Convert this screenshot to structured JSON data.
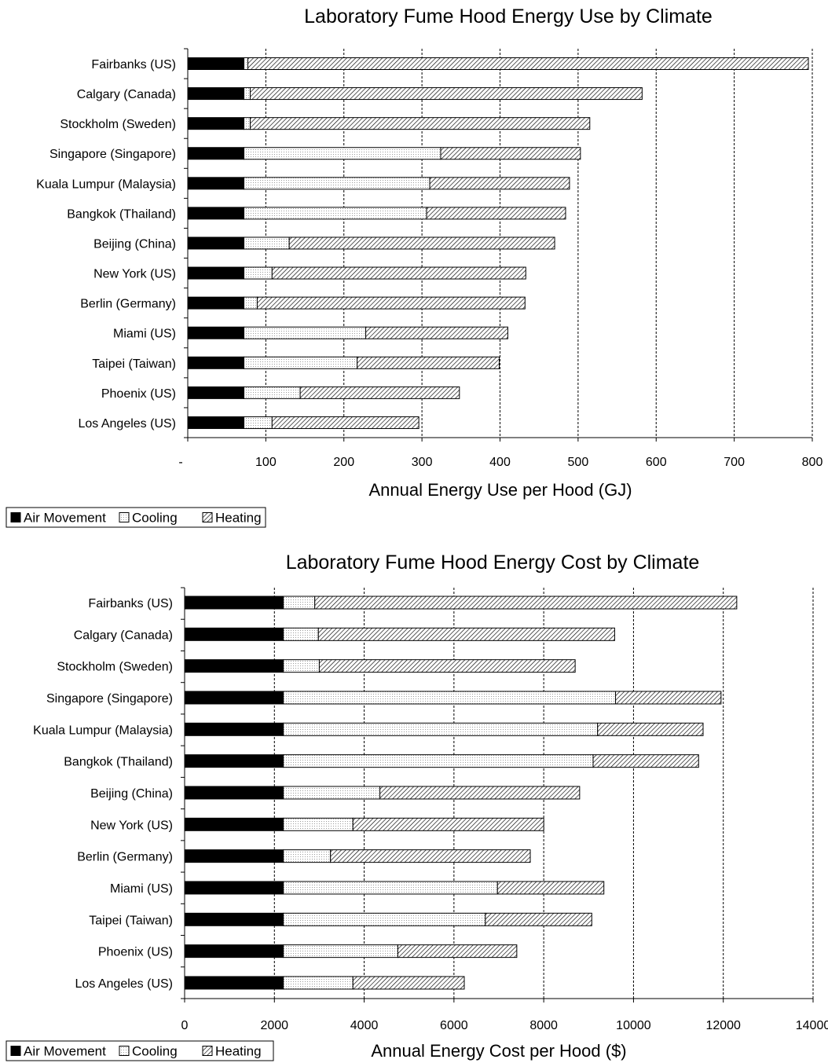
{
  "colors": {
    "air": "#000000",
    "cooling": "#ffffff",
    "heating": "#d8d8d8",
    "stroke": "#000000"
  },
  "legend": {
    "items": [
      "Air Movement",
      "Cooling",
      "Heating"
    ]
  },
  "chart_data": [
    {
      "type": "bar",
      "orientation": "horizontal",
      "stacked": true,
      "title": "Laboratory Fume Hood Energy Use by Climate",
      "xlabel": "Annual Energy Use per Hood (GJ)",
      "ylabel": "",
      "xlim": [
        0,
        800
      ],
      "xtick_labels": [
        "-",
        "100",
        "200",
        "300",
        "400",
        "500",
        "600",
        "700",
        "800"
      ],
      "grid": "vertical dashed",
      "legend_position": "bottom-left",
      "categories": [
        "Fairbanks (US)",
        "Calgary (Canada)",
        "Stockholm (Sweden)",
        "Singapore (Singapore)",
        "Kuala Lumpur (Malaysia)",
        "Bangkok (Thailand)",
        "Beijing (China)",
        "New York (US)",
        "Berlin (Germany)",
        "Miami (US)",
        "Taipei (Taiwan)",
        "Phoenix (US)",
        "Los Angeles (US)"
      ],
      "series": [
        {
          "name": "Air Movement",
          "values": [
            72,
            72,
            72,
            72,
            72,
            72,
            72,
            72,
            72,
            72,
            72,
            72,
            72
          ]
        },
        {
          "name": "Cooling",
          "values": [
            5,
            8,
            8,
            252,
            238,
            234,
            58,
            36,
            17,
            156,
            145,
            72,
            36
          ]
        },
        {
          "name": "Heating",
          "values": [
            718,
            502,
            435,
            179,
            179,
            178,
            340,
            325,
            343,
            182,
            182,
            204,
            188
          ]
        }
      ]
    },
    {
      "type": "bar",
      "orientation": "horizontal",
      "stacked": true,
      "title": "Laboratory Fume Hood Energy Cost by Climate",
      "xlabel": "Annual Energy Cost per Hood ($)",
      "ylabel": "",
      "xlim": [
        0,
        14000
      ],
      "xtick_labels": [
        "0",
        "2000",
        "4000",
        "6000",
        "8000",
        "10000",
        "12000",
        "14000"
      ],
      "grid": "vertical dashed",
      "legend_position": "bottom-left",
      "categories": [
        "Fairbanks (US)",
        "Calgary (Canada)",
        "Stockholm (Sweden)",
        "Singapore (Singapore)",
        "Kuala Lumpur (Malaysia)",
        "Bangkok (Thailand)",
        "Beijing (China)",
        "New York (US)",
        "Berlin (Germany)",
        "Miami (US)",
        "Taipei (Taiwan)",
        "Phoenix (US)",
        "Los Angeles (US)"
      ],
      "series": [
        {
          "name": "Air Movement",
          "values": [
            2200,
            2200,
            2200,
            2200,
            2200,
            2200,
            2200,
            2200,
            2200,
            2200,
            2200,
            2200,
            2200
          ]
        },
        {
          "name": "Cooling",
          "values": [
            700,
            780,
            800,
            7400,
            7000,
            6900,
            2150,
            1550,
            1050,
            4770,
            4500,
            2550,
            1550
          ]
        },
        {
          "name": "Heating",
          "values": [
            9400,
            6600,
            5700,
            2350,
            2350,
            2350,
            4450,
            4250,
            4450,
            2370,
            2370,
            2650,
            2480
          ]
        }
      ]
    }
  ]
}
